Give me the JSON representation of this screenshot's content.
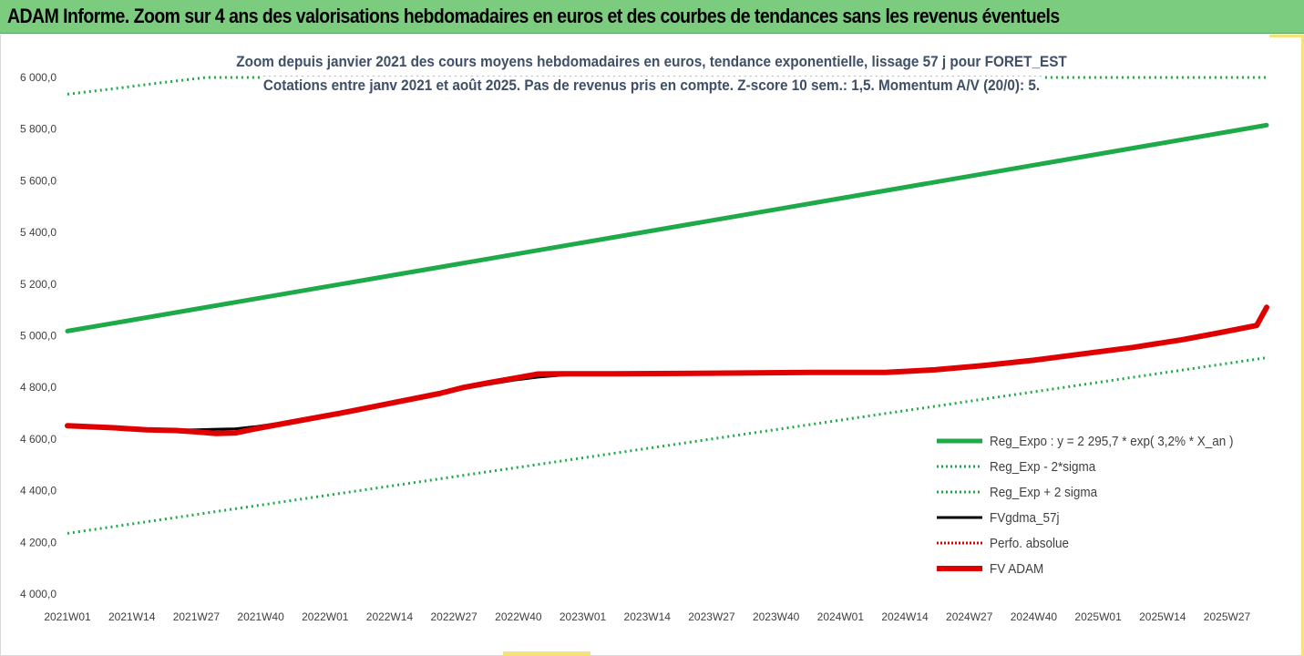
{
  "header": {
    "title": "ADAM Informe. Zoom sur 4 ans des valorisations hebdomadaires en euros et des courbes de tendances sans les revenus éventuels"
  },
  "chart_data": {
    "type": "line",
    "title": "Zoom depuis janvier 2021 des cours moyens hebdomadaires en euros, tendance exponentielle, lissage 57 j pour FORET_EST",
    "subtitle": "Cotations entre janv 2021 et août 2025.  Pas de revenus pris en compte. Z-score 10 sem.: 1,5. Momentum A/V (20/0): 5.",
    "xlabel": "",
    "ylabel": "",
    "ylim": [
      4000,
      6000
    ],
    "y_ticks": [
      "4 000,0",
      "4 200,0",
      "4 400,0",
      "4 600,0",
      "4 800,0",
      "5 000,0",
      "5 200,0",
      "5 400,0",
      "5 600,0",
      "5 800,0",
      "6 000,0"
    ],
    "x_ticks": [
      "2021W01",
      "2021W14",
      "2021W27",
      "2021W40",
      "2022W01",
      "2022W14",
      "2022W27",
      "2022W40",
      "2023W01",
      "2023W14",
      "2023W27",
      "2023W40",
      "2024W01",
      "2024W14",
      "2024W27",
      "2024W40",
      "2025W01",
      "2025W14",
      "2025W27"
    ],
    "x_max_index": 242,
    "grid": false,
    "legend_position": "right",
    "series": [
      {
        "name": "Reg_Expo : y = 2 295,7 * exp( 3,2% *  X_an )",
        "color": "#1faa4a",
        "style": "solid-thick",
        "points": [
          [
            0,
            5018
          ],
          [
            242,
            5815
          ]
        ]
      },
      {
        "name": "Reg_Exp - 2*sigma",
        "color": "#1faa4a",
        "style": "dotted",
        "points": [
          [
            0,
            4235
          ],
          [
            242,
            4915
          ]
        ]
      },
      {
        "name": "Reg_Exp + 2 sigma",
        "color": "#1faa4a",
        "style": "dotted",
        "points": [
          [
            0,
            5935
          ],
          [
            10,
            5958
          ],
          [
            20,
            5982
          ],
          [
            28,
            6000
          ],
          [
            242,
            6000
          ]
        ]
      },
      {
        "name": "FVgdma_57j",
        "color": "#000000",
        "style": "solid",
        "points": [
          [
            0,
            4652
          ],
          [
            10,
            4641
          ],
          [
            16,
            4636
          ],
          [
            22,
            4635
          ],
          [
            26,
            4636
          ],
          [
            30,
            4638
          ],
          [
            34,
            4640
          ],
          [
            38,
            4648
          ],
          [
            45,
            4668
          ],
          [
            55,
            4700
          ],
          [
            65,
            4738
          ],
          [
            75,
            4775
          ],
          [
            80,
            4795
          ],
          [
            85,
            4812
          ],
          [
            90,
            4828
          ],
          [
            95,
            4840
          ],
          [
            100,
            4848
          ],
          [
            110,
            4853
          ],
          [
            130,
            4855
          ],
          [
            150,
            4858
          ],
          [
            165,
            4860
          ],
          [
            175,
            4868
          ],
          [
            185,
            4885
          ],
          [
            195,
            4905
          ],
          [
            205,
            4930
          ],
          [
            215,
            4955
          ],
          [
            225,
            4985
          ],
          [
            232,
            5010
          ],
          [
            240,
            5040
          ],
          [
            242,
            5105
          ]
        ]
      },
      {
        "name": "Perfo. absolue",
        "color": "#e00000",
        "style": "dotted",
        "points": [
          [
            0,
            4650
          ],
          [
            10,
            4643
          ],
          [
            16,
            4636
          ],
          [
            22,
            4633
          ],
          [
            26,
            4628
          ],
          [
            30,
            4620
          ],
          [
            34,
            4623
          ],
          [
            38,
            4640
          ],
          [
            45,
            4665
          ],
          [
            55,
            4700
          ],
          [
            65,
            4738
          ],
          [
            75,
            4776
          ],
          [
            80,
            4800
          ],
          [
            85,
            4818
          ],
          [
            90,
            4835
          ],
          [
            95,
            4850
          ],
          [
            100,
            4853
          ],
          [
            110,
            4853
          ],
          [
            130,
            4855
          ],
          [
            150,
            4858
          ],
          [
            165,
            4858
          ],
          [
            175,
            4868
          ],
          [
            185,
            4885
          ],
          [
            195,
            4905
          ],
          [
            205,
            4930
          ],
          [
            215,
            4955
          ],
          [
            225,
            4985
          ],
          [
            232,
            5010
          ],
          [
            240,
            5040
          ],
          [
            242,
            5110
          ]
        ]
      },
      {
        "name": "FV ADAM",
        "color": "#e00000",
        "style": "solid-thick",
        "points": [
          [
            0,
            4652
          ],
          [
            10,
            4643
          ],
          [
            16,
            4636
          ],
          [
            22,
            4633
          ],
          [
            26,
            4628
          ],
          [
            30,
            4622
          ],
          [
            34,
            4624
          ],
          [
            38,
            4640
          ],
          [
            45,
            4665
          ],
          [
            55,
            4700
          ],
          [
            65,
            4738
          ],
          [
            75,
            4776
          ],
          [
            80,
            4800
          ],
          [
            85,
            4818
          ],
          [
            90,
            4835
          ],
          [
            95,
            4852
          ],
          [
            100,
            4853
          ],
          [
            110,
            4853
          ],
          [
            130,
            4855
          ],
          [
            150,
            4858
          ],
          [
            165,
            4858
          ],
          [
            175,
            4868
          ],
          [
            185,
            4885
          ],
          [
            195,
            4905
          ],
          [
            205,
            4930
          ],
          [
            215,
            4955
          ],
          [
            225,
            4985
          ],
          [
            232,
            5010
          ],
          [
            240,
            5040
          ],
          [
            242,
            5110
          ]
        ]
      }
    ]
  }
}
